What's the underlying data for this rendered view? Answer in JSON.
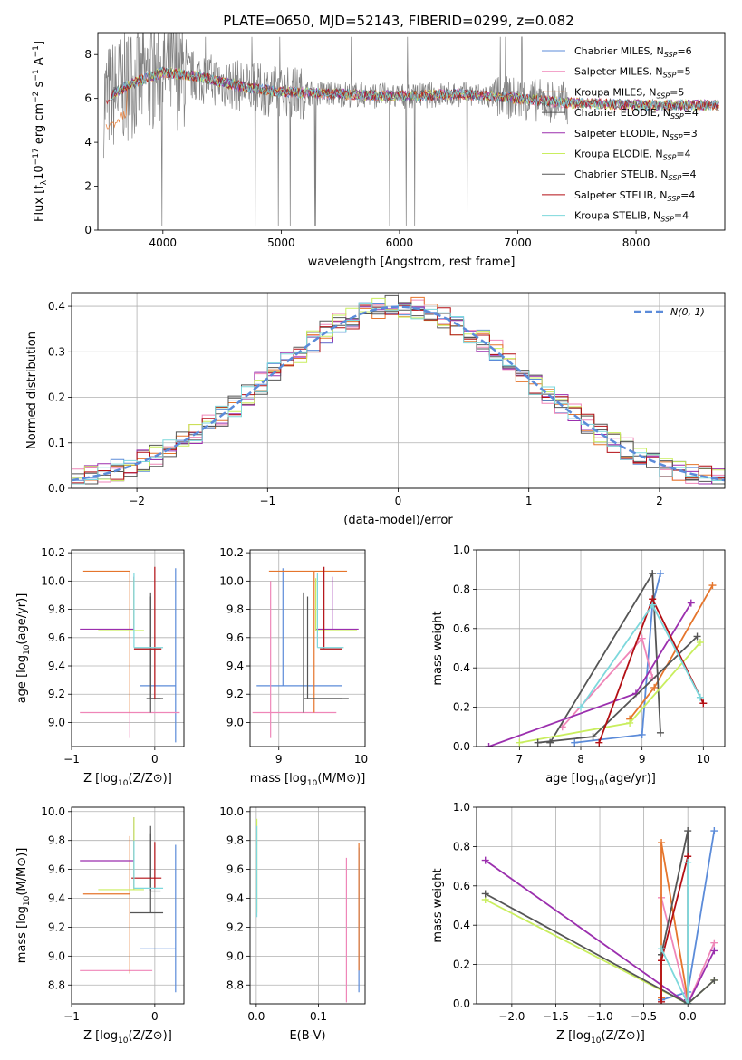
{
  "figure": {
    "title": "PLATE=0650, MJD=52143, FIBERID=0299, z=0.082"
  },
  "models": [
    {
      "label": "Chabrier MILES, N",
      "n": "6",
      "color": "#5b8bd9"
    },
    {
      "label": "Salpeter MILES, N",
      "n": "5",
      "color": "#ef86b8"
    },
    {
      "label": "Kroupa MILES, N",
      "n": "5",
      "color": "#e5752c"
    },
    {
      "label": "Chabrier ELODIE, N",
      "n": "4",
      "color": "#555555"
    },
    {
      "label": "Salpeter ELODIE, N",
      "n": "3",
      "color": "#9b2fae"
    },
    {
      "label": "Kroupa ELODIE, N",
      "n": "4",
      "color": "#c9ee5e"
    },
    {
      "label": "Chabrier STELIB, N",
      "n": "4",
      "color": "#555555"
    },
    {
      "label": "Salpeter STELIB, N",
      "n": "4",
      "color": "#b30f14"
    },
    {
      "label": "Kroupa STELIB, N",
      "n": "4",
      "color": "#7dd8dc"
    }
  ],
  "legend_sub": "SSP",
  "chart_data": [
    {
      "id": "spectrum",
      "type": "line",
      "xlabel": "wavelength [Angstrom, rest frame]",
      "ylabel": "Flux [f",
      "xlim": [
        3450,
        8750
      ],
      "ylim": [
        0,
        9
      ],
      "xticks": [
        4000,
        5000,
        6000,
        7000,
        8000
      ],
      "yticks": [
        0,
        2,
        4,
        6,
        8
      ],
      "grid": false,
      "legend": "right",
      "data_color": "#808080",
      "continuum": [
        [
          3500,
          5.9
        ],
        [
          3700,
          6.6
        ],
        [
          4000,
          7.2
        ],
        [
          4300,
          7.0
        ],
        [
          4700,
          6.5
        ],
        [
          5000,
          6.3
        ],
        [
          5500,
          6.2
        ],
        [
          6000,
          6.1
        ],
        [
          6500,
          6.2
        ],
        [
          7000,
          6.0
        ],
        [
          7400,
          5.8
        ],
        [
          8000,
          5.7
        ],
        [
          8700,
          5.7
        ]
      ]
    },
    {
      "id": "residuals",
      "type": "histogram",
      "xlabel": "(data-model)/error",
      "ylabel": "Normed distribution",
      "xlim": [
        -2.5,
        2.5
      ],
      "ylim": [
        0,
        0.43
      ],
      "xticks": [
        -2,
        -1,
        0,
        1,
        2
      ],
      "yticks": [
        0.0,
        0.1,
        0.2,
        0.3,
        0.4
      ],
      "grid": true,
      "legend": "top-right",
      "reference_curve": {
        "label": "N(0, 1)",
        "color": "#5b8bd9",
        "style": "dashed"
      },
      "bins": [
        -2.5,
        -2.4,
        -2.3,
        -2.2,
        -2.1,
        -2.0,
        -1.9,
        -1.8,
        -1.7,
        -1.6,
        -1.5,
        -1.4,
        -1.3,
        -1.2,
        -1.1,
        -1.0,
        -0.9,
        -0.8,
        -0.7,
        -0.6,
        -0.5,
        -0.4,
        -0.3,
        -0.2,
        -0.1,
        0.0,
        0.1,
        0.2,
        0.3,
        0.4,
        0.5,
        0.6,
        0.7,
        0.8,
        0.9,
        1.0,
        1.1,
        1.2,
        1.3,
        1.4,
        1.5,
        1.6,
        1.7,
        1.8,
        1.9,
        2.0,
        2.1,
        2.2,
        2.3,
        2.4,
        2.5
      ]
    },
    {
      "id": "age-vs-Z",
      "type": "errorbar",
      "xlabel": "Z [log",
      "ylabel": "age  [log",
      "xlim": [
        -1.0,
        0.35
      ],
      "ylim": [
        8.83,
        10.22
      ],
      "xticks": [
        -1,
        0
      ],
      "yticks": [
        9.0,
        9.2,
        9.4,
        9.6,
        9.8,
        10.0,
        10.2
      ],
      "grid": true,
      "points": [
        {
          "series": 0,
          "x": 0.25,
          "y": 9.26,
          "xerr": [
            0.43,
            0.0
          ],
          "yerr": [
            0.4,
            0.83
          ]
        },
        {
          "series": 1,
          "x": -0.3,
          "y": 9.07,
          "xerr": [
            0.6,
            0.6
          ],
          "yerr": [
            0.18,
            0.0
          ]
        },
        {
          "series": 2,
          "x": -0.3,
          "y": 10.07,
          "xerr": [
            0.56,
            0.0
          ],
          "yerr": [
            1.0,
            0.0
          ]
        },
        {
          "series": 3,
          "x": -0.05,
          "y": 9.17,
          "xerr": [
            0.05,
            0.15
          ],
          "yerr": [
            0.1,
            0.75
          ]
        },
        {
          "series": 4,
          "x": -0.25,
          "y": 9.66,
          "xerr": [
            0.65,
            0.0
          ],
          "yerr": [
            0.0,
            0.37
          ]
        },
        {
          "series": 5,
          "x": -0.25,
          "y": 9.65,
          "xerr": [
            0.43,
            0.12
          ],
          "yerr": [
            0.0,
            0.37
          ]
        },
        {
          "series": 6,
          "x": -0.05,
          "y": 9.17,
          "xerr": [
            0.0,
            0.12
          ],
          "yerr": [
            0.0,
            0.72
          ]
        },
        {
          "series": 7,
          "x": 0.0,
          "y": 9.52,
          "xerr": [
            0.25,
            0.08
          ],
          "yerr": [
            0.35,
            0.58
          ]
        },
        {
          "series": 8,
          "x": -0.25,
          "y": 9.53,
          "xerr": [
            0.0,
            0.35
          ],
          "yerr": [
            0.0,
            0.53
          ]
        }
      ]
    },
    {
      "id": "age-vs-mass",
      "type": "errorbar",
      "xlabel": "mass [log",
      "ylabel": "",
      "xlim": [
        8.65,
        10.05
      ],
      "ylim": [
        8.83,
        10.22
      ],
      "xticks": [
        9,
        10
      ],
      "yticks": [
        9.0,
        9.2,
        9.4,
        9.6,
        9.8,
        10.0,
        10.2
      ],
      "grid": true,
      "points": [
        {
          "series": 0,
          "x": 9.05,
          "y": 9.26,
          "xerr": [
            0.32,
            0.72
          ],
          "yerr": [
            0.0,
            0.83
          ]
        },
        {
          "series": 1,
          "x": 8.9,
          "y": 9.07,
          "xerr": [
            0.22,
            0.8
          ],
          "yerr": [
            0.18,
            0.93
          ]
        },
        {
          "series": 2,
          "x": 9.43,
          "y": 10.07,
          "xerr": [
            0.55,
            0.4
          ],
          "yerr": [
            1.0,
            0.0
          ]
        },
        {
          "series": 3,
          "x": 9.3,
          "y": 9.17,
          "xerr": [
            0.0,
            0.55
          ],
          "yerr": [
            0.1,
            0.75
          ]
        },
        {
          "series": 4,
          "x": 9.65,
          "y": 9.66,
          "xerr": [
            0.2,
            0.32
          ],
          "yerr": [
            0.0,
            0.37
          ]
        },
        {
          "series": 5,
          "x": 9.45,
          "y": 9.65,
          "xerr": [
            0.0,
            0.5
          ],
          "yerr": [
            0.0,
            0.37
          ]
        },
        {
          "series": 6,
          "x": 9.35,
          "y": 9.17,
          "xerr": [
            0.0,
            0.42
          ],
          "yerr": [
            0.0,
            0.72
          ]
        },
        {
          "series": 7,
          "x": 9.55,
          "y": 9.52,
          "xerr": [
            0.05,
            0.22
          ],
          "yerr": [
            0.0,
            0.58
          ]
        },
        {
          "series": 8,
          "x": 9.47,
          "y": 9.53,
          "xerr": [
            0.0,
            0.32
          ],
          "yerr": [
            0.0,
            0.53
          ]
        }
      ]
    },
    {
      "id": "weight-vs-age",
      "type": "line",
      "xlabel": "age  [log",
      "ylabel": "mass weight",
      "xlim": [
        6.3,
        10.35
      ],
      "ylim": [
        0,
        1.0
      ],
      "xticks": [
        7,
        8,
        9,
        10
      ],
      "yticks": [
        0.0,
        0.2,
        0.4,
        0.6,
        0.8,
        1.0
      ],
      "grid": true,
      "series": [
        {
          "idx": 0,
          "x": [
            7.9,
            9.0,
            9.17,
            9.3
          ],
          "y": [
            0.02,
            0.06,
            0.72,
            0.88
          ]
        },
        {
          "idx": 1,
          "x": [
            7.7,
            9.0,
            9.17
          ],
          "y": [
            0.1,
            0.55,
            0.35
          ]
        },
        {
          "idx": 2,
          "x": [
            8.8,
            9.2,
            10.15
          ],
          "y": [
            0.14,
            0.3,
            0.82
          ]
        },
        {
          "idx": 3,
          "x": [
            7.5,
            9.17,
            9.3
          ],
          "y": [
            0.02,
            0.88,
            0.07
          ]
        },
        {
          "idx": 4,
          "x": [
            6.5,
            8.9,
            9.8
          ],
          "y": [
            0.0,
            0.27,
            0.73
          ]
        },
        {
          "idx": 5,
          "x": [
            7.0,
            8.8,
            9.95
          ],
          "y": [
            0.02,
            0.12,
            0.53
          ]
        },
        {
          "idx": 6,
          "x": [
            7.3,
            8.2,
            9.9
          ],
          "y": [
            0.02,
            0.05,
            0.56
          ]
        },
        {
          "idx": 7,
          "x": [
            8.3,
            9.17,
            10.0
          ],
          "y": [
            0.02,
            0.75,
            0.22
          ]
        },
        {
          "idx": 8,
          "x": [
            8.0,
            9.17,
            9.95
          ],
          "y": [
            0.2,
            0.72,
            0.25
          ]
        }
      ]
    },
    {
      "id": "mass-vs-Z",
      "type": "errorbar",
      "xlabel": "Z [log",
      "ylabel": "mass [log",
      "xlim": [
        -1.0,
        0.35
      ],
      "ylim": [
        8.67,
        10.03
      ],
      "xticks": [
        -1,
        0
      ],
      "yticks": [
        8.8,
        9.0,
        9.2,
        9.4,
        9.6,
        9.8,
        10.0
      ],
      "grid": true,
      "points": [
        {
          "series": 0,
          "x": 0.25,
          "y": 9.05,
          "xerr": [
            0.43,
            0.0
          ],
          "yerr": [
            0.3,
            0.72
          ]
        },
        {
          "series": 1,
          "x": -0.3,
          "y": 8.9,
          "xerr": [
            0.6,
            0.27
          ],
          "yerr": [
            0.0,
            0.0
          ]
        },
        {
          "series": 2,
          "x": -0.3,
          "y": 9.43,
          "xerr": [
            0.56,
            0.0
          ],
          "yerr": [
            0.55,
            0.4
          ]
        },
        {
          "series": 3,
          "x": -0.05,
          "y": 9.3,
          "xerr": [
            0.25,
            0.15
          ],
          "yerr": [
            0.0,
            0.6
          ]
        },
        {
          "series": 4,
          "x": -0.25,
          "y": 9.66,
          "xerr": [
            0.65,
            0.0
          ],
          "yerr": [
            0.2,
            0.3
          ]
        },
        {
          "series": 5,
          "x": -0.25,
          "y": 9.46,
          "xerr": [
            0.43,
            0.12
          ],
          "yerr": [
            0.0,
            0.5
          ]
        },
        {
          "series": 6,
          "x": -0.05,
          "y": 9.45,
          "xerr": [
            0.0,
            0.12
          ],
          "yerr": [
            0.0,
            0.4
          ]
        },
        {
          "series": 7,
          "x": 0.0,
          "y": 9.54,
          "xerr": [
            0.28,
            0.08
          ],
          "yerr": [
            0.07,
            0.25
          ]
        },
        {
          "series": 8,
          "x": -0.25,
          "y": 9.47,
          "xerr": [
            0.0,
            0.35
          ],
          "yerr": [
            0.0,
            0.33
          ]
        }
      ]
    },
    {
      "id": "mass-vs-ebv",
      "type": "errorbar",
      "xlabel": "E(B-V)",
      "ylabel": "",
      "xlim": [
        -0.01,
        0.175
      ],
      "ylim": [
        8.67,
        10.03
      ],
      "xticks": [
        0.0,
        0.1
      ],
      "xtick_labels": [
        "0.0",
        "0.1"
      ],
      "yticks": [
        8.8,
        9.0,
        9.2,
        9.4,
        9.6,
        9.8,
        10.0
      ],
      "grid": true,
      "points": [
        {
          "series": 0,
          "x": 0.165,
          "y": 9.3,
          "xerr": [
            0,
            0
          ],
          "yerr": [
            0.55,
            0.45
          ]
        },
        {
          "series": 1,
          "x": 0.145,
          "y": 9.2,
          "xerr": [
            0,
            0
          ],
          "yerr": [
            0.52,
            0.48
          ]
        },
        {
          "series": 2,
          "x": 0.165,
          "y": 9.4,
          "xerr": [
            0,
            0
          ],
          "yerr": [
            0.5,
            0.38
          ]
        },
        {
          "series": 5,
          "x": 0.001,
          "y": 9.7,
          "xerr": [
            0,
            0
          ],
          "yerr": [
            0.4,
            0.25
          ]
        },
        {
          "series": 8,
          "x": 0.001,
          "y": 9.55,
          "xerr": [
            0,
            0
          ],
          "yerr": [
            0.28,
            0.35
          ]
        }
      ]
    },
    {
      "id": "weight-vs-Z",
      "type": "line",
      "xlabel": "Z [log",
      "ylabel": "mass weight",
      "xlim": [
        -2.4,
        0.42
      ],
      "ylim": [
        0,
        1.0
      ],
      "xticks": [
        -2.0,
        -1.5,
        -1.0,
        -0.5,
        0.0
      ],
      "yticks": [
        0.0,
        0.2,
        0.4,
        0.6,
        0.8,
        1.0
      ],
      "grid": true,
      "series": [
        {
          "idx": 0,
          "x": [
            -0.3,
            0.0,
            0.3
          ],
          "y": [
            0.02,
            0.06,
            0.88
          ]
        },
        {
          "idx": 1,
          "x": [
            -0.3,
            0.0,
            0.3
          ],
          "y": [
            0.54,
            0.0,
            0.31
          ]
        },
        {
          "idx": 2,
          "x": [
            -0.3,
            -0.3,
            0.0
          ],
          "y": [
            0.03,
            0.82,
            0.02
          ]
        },
        {
          "idx": 3,
          "x": [
            -0.3,
            0.0,
            0.0
          ],
          "y": [
            0.25,
            0.88,
            0.02
          ]
        },
        {
          "idx": 4,
          "x": [
            -2.3,
            0.0,
            0.3
          ],
          "y": [
            0.73,
            0.0,
            0.27
          ]
        },
        {
          "idx": 5,
          "x": [
            -2.3,
            0.0,
            0.3
          ],
          "y": [
            0.53,
            0.0,
            0.12
          ]
        },
        {
          "idx": 6,
          "x": [
            -2.3,
            0.0,
            0.3
          ],
          "y": [
            0.56,
            0.0,
            0.12
          ]
        },
        {
          "idx": 7,
          "x": [
            -0.3,
            -0.3,
            0.0
          ],
          "y": [
            0.01,
            0.22,
            0.75
          ]
        },
        {
          "idx": 8,
          "x": [
            -0.3,
            0.0,
            0.0
          ],
          "y": [
            0.28,
            0.0,
            0.72
          ]
        }
      ]
    }
  ]
}
